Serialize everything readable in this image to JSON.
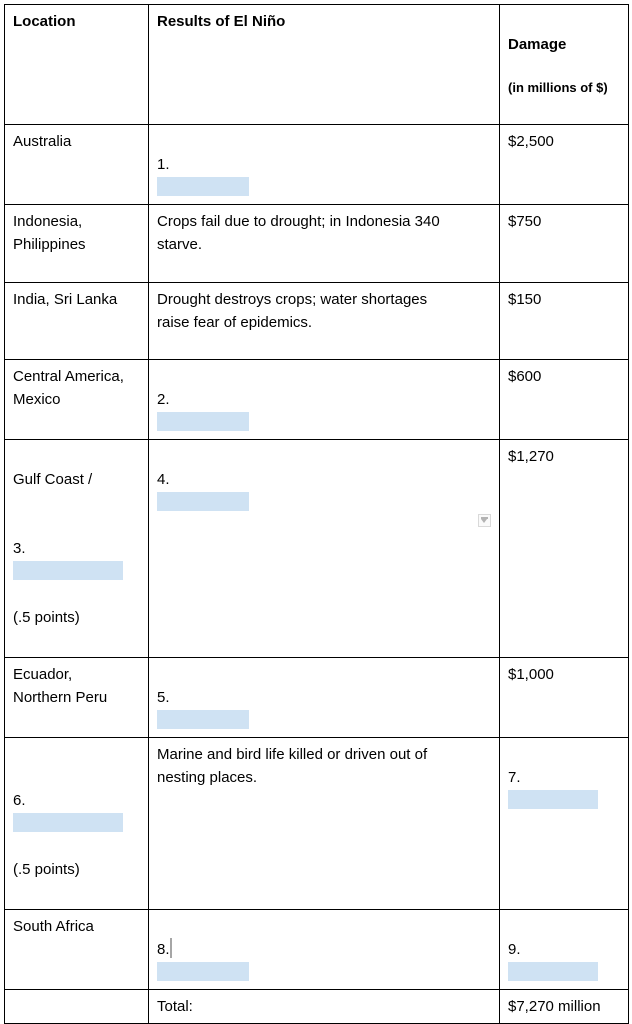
{
  "colors": {
    "blank_fill": "#cfe2f3",
    "table_border": "#000000",
    "dropdown_border": "#d9d9d9",
    "dropdown_glyph": "#b3b3b3"
  },
  "table": {
    "headers": {
      "location": "Location",
      "results": "Results of El Niño",
      "damage_title": "Damage",
      "damage_sub": "(in millions of $)"
    },
    "rows": {
      "australia": {
        "location": "Australia",
        "result_label": "1.",
        "damage": "$2,500"
      },
      "indonesia": {
        "location": "Indonesia,\nPhilippines",
        "result": "Crops fail due to drought; in Indonesia 340\nstarve.",
        "damage": "$750"
      },
      "india": {
        "location": "India, Sri Lanka",
        "result": "Drought destroys crops; water shortages\nraise fear of epidemics.",
        "damage": "$150"
      },
      "central_america": {
        "location": "Central America,\nMexico",
        "result_label": "2.",
        "damage": "$600"
      },
      "gulf_coast": {
        "location_line1": "Gulf Coast /",
        "location_label": "3.",
        "location_note": "(.5 points)",
        "result_label": "4.",
        "damage": "$1,270"
      },
      "ecuador": {
        "location": "Ecuador,\nNorthern Peru",
        "result_label": "5.",
        "damage": "$1,000"
      },
      "marine": {
        "location_label": "6.",
        "location_note": "(.5 points)",
        "result": "Marine and bird life killed or driven out of\nnesting places.",
        "damage_label": "7."
      },
      "south_africa": {
        "location": "South Africa",
        "result_label": "8.",
        "damage_label": "9."
      },
      "total": {
        "result": "Total:",
        "damage": "$7,270 million"
      }
    }
  }
}
